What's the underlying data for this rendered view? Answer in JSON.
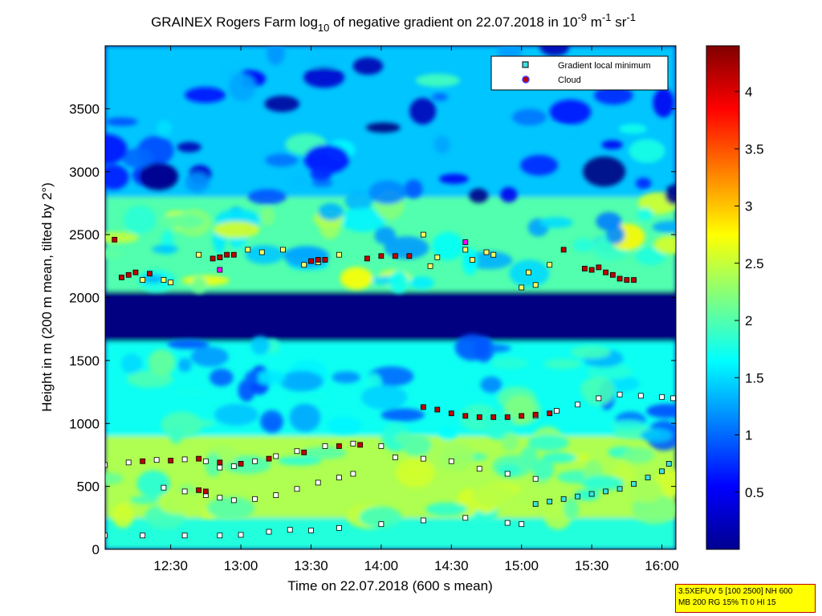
{
  "chart_data": {
    "type": "heatmap",
    "title": "GRAINEX Rogers Farm log",
    "title_sub": "10",
    "title_mid": " of negative gradient on 22.07.2018 in 10",
    "title_sup1": "-9",
    "title_mid2": " m",
    "title_sup2": "-1",
    "title_mid3": " sr",
    "title_sup3": "-1",
    "xlabel": "Time on 22.07.2018 (600 s mean)",
    "ylabel": "Height in m (200 m mean, tilted by 2°)",
    "x_unit": "hours",
    "xlim": [
      12.033,
      16.1
    ],
    "ylim": [
      0,
      4000
    ],
    "x_ticks": [
      12.5,
      13.0,
      13.5,
      14.0,
      14.5,
      15.0,
      15.5,
      16.0
    ],
    "x_tick_labels": [
      "12:30",
      "13:00",
      "13:30",
      "14:00",
      "14:30",
      "15:00",
      "15:30",
      "16:00"
    ],
    "y_ticks": [
      0,
      500,
      1000,
      1500,
      2000,
      2500,
      3000,
      3500
    ],
    "y_tick_labels": [
      "0",
      "500",
      "1000",
      "1500",
      "2000",
      "2500",
      "3000",
      "3500"
    ],
    "colorbar": {
      "range": [
        0,
        4.4
      ],
      "ticks": [
        0.5,
        1,
        1.5,
        2,
        2.5,
        3,
        3.5,
        4
      ],
      "tick_labels": [
        "0.5",
        "1",
        "1.5",
        "2",
        "2.5",
        "3",
        "3.5",
        "4"
      ],
      "colormap": "jet"
    },
    "legend": {
      "position": "top-right",
      "entries": [
        {
          "label": "Gradient local minimum",
          "marker": "square",
          "color": "#40e0e0"
        },
        {
          "label": "Cloud",
          "marker": "circle",
          "color": "#c00000",
          "edge": "#4040ff"
        }
      ]
    },
    "background_layers": [
      {
        "name": "lowest band",
        "x_start": 12.033,
        "x_end": 16.1,
        "y_bottom": 0,
        "y_top": 250,
        "level": 1.8
      },
      {
        "name": "surface layer",
        "x_start": 12.033,
        "x_end": 16.1,
        "y_bottom": 250,
        "y_top": 900,
        "level": 2.4
      },
      {
        "name": "lower residual band",
        "x_start": 12.033,
        "x_end": 16.1,
        "y_bottom": 900,
        "y_top": 1650,
        "level": 1.7
      },
      {
        "name": "quiet layer",
        "x_start": 12.033,
        "x_end": 16.1,
        "y_bottom": 1650,
        "y_top": 2050,
        "level": 0.0
      },
      {
        "name": "cloud layer",
        "x_start": 12.033,
        "x_end": 16.1,
        "y_bottom": 2050,
        "y_top": 2800,
        "level": 2.0
      },
      {
        "name": "upper layer",
        "x_start": 12.033,
        "x_end": 16.1,
        "y_bottom": 2800,
        "y_top": 4000,
        "level": 1.4
      }
    ],
    "series": [
      {
        "name": "Gradient local minimum",
        "marker_color": "#ffffff",
        "x": [
          12.03,
          12.2,
          12.4,
          12.6,
          12.75,
          12.85,
          12.95,
          13.1,
          13.25,
          13.4,
          13.6,
          13.8,
          14.0,
          14.1,
          14.3,
          14.5,
          14.7,
          14.9,
          15.1
        ],
        "y": [
          670,
          690,
          710,
          715,
          700,
          650,
          660,
          700,
          740,
          780,
          820,
          840,
          820,
          730,
          720,
          700,
          640,
          600,
          560
        ]
      },
      {
        "name": "Gradient local minimum",
        "marker_color": "#ffffff",
        "x": [
          12.45,
          12.6,
          12.75,
          12.85,
          12.95,
          13.1,
          13.25,
          13.4,
          13.55,
          13.7,
          13.8
        ],
        "y": [
          490,
          460,
          430,
          410,
          390,
          400,
          430,
          480,
          530,
          570,
          600
        ]
      },
      {
        "name": "Gradient local minimum",
        "marker_color": "#ffffff",
        "x": [
          12.03,
          12.3,
          12.6,
          12.85,
          13.0,
          13.2,
          13.35,
          13.5,
          13.7,
          14.0,
          14.3,
          14.6,
          14.9,
          15.0
        ],
        "y": [
          110,
          110,
          110,
          110,
          115,
          140,
          155,
          150,
          170,
          200,
          230,
          250,
          210,
          200
        ]
      },
      {
        "name": "Gradient local minimum",
        "marker_color": "#40e0e0",
        "x": [
          15.1,
          15.2,
          15.3,
          15.4,
          15.5,
          15.6,
          15.7,
          15.8,
          15.9,
          16.0,
          16.05
        ],
        "y": [
          360,
          380,
          400,
          420,
          440,
          460,
          480,
          520,
          570,
          620,
          680
        ]
      },
      {
        "name": "Gradient local minimum",
        "marker_color": "#ffffff",
        "x": [
          15.1,
          15.25,
          15.4,
          15.55,
          15.7,
          15.85,
          16.0,
          16.08
        ],
        "y": [
          1060,
          1100,
          1150,
          1200,
          1230,
          1220,
          1210,
          1200
        ]
      },
      {
        "name": "Gradient local minimum",
        "marker_color": "#ffff66",
        "x": [
          12.3,
          12.45,
          12.5,
          12.7,
          12.85,
          13.05,
          13.15,
          13.3,
          13.45,
          13.55,
          13.7,
          14.3,
          14.35,
          14.4,
          14.6,
          14.65,
          14.75,
          14.8,
          15.0,
          15.05,
          15.1,
          15.2
        ],
        "y": [
          2140,
          2140,
          2120,
          2340,
          2320,
          2380,
          2360,
          2380,
          2260,
          2280,
          2340,
          2500,
          2250,
          2320,
          2380,
          2300,
          2360,
          2340,
          2080,
          2200,
          2100,
          2260
        ]
      },
      {
        "name": "Cloud",
        "marker_color": "#c00000",
        "x": [
          12.1,
          12.15,
          12.2,
          12.25,
          12.35,
          12.8,
          12.85,
          12.9,
          12.95,
          13.5,
          13.55,
          13.6,
          13.9,
          14.0,
          14.1,
          14.2,
          14.3,
          14.4,
          14.5,
          14.6,
          14.7,
          14.8,
          14.9,
          15.0,
          15.1,
          15.2,
          15.3,
          15.45,
          15.5,
          15.55,
          15.6,
          15.65,
          15.7,
          15.75,
          15.8
        ],
        "y": [
          2460,
          2160,
          2180,
          2200,
          2190,
          2310,
          2320,
          2340,
          2340,
          2290,
          2300,
          2300,
          2310,
          2330,
          2330,
          2330,
          1130,
          1110,
          1080,
          1060,
          1050,
          1050,
          1050,
          1060,
          1070,
          1080,
          2380,
          2230,
          2220,
          2240,
          2200,
          2180,
          2150,
          2140,
          2140
        ]
      },
      {
        "name": "Cloud",
        "marker_color": "#c00000",
        "x": [
          12.3,
          12.5,
          12.7,
          12.85,
          13.0,
          13.2,
          13.45,
          13.7,
          13.85
        ],
        "y": [
          700,
          705,
          720,
          690,
          680,
          720,
          770,
          820,
          830
        ]
      },
      {
        "name": "Cloud",
        "marker_color": "#c00000",
        "x": [
          12.7,
          12.75
        ],
        "y": [
          470,
          460
        ]
      },
      {
        "name": "Cloud",
        "marker_color": "#ff00ff",
        "x": [
          12.85,
          14.6
        ],
        "y": [
          2220,
          2440
        ]
      }
    ]
  },
  "parameter_box": {
    "line1": "3.5XEFUV 5 [100 2500] NH 600",
    "line2": "MB 200 RG 15% TI 0 HI 15"
  }
}
